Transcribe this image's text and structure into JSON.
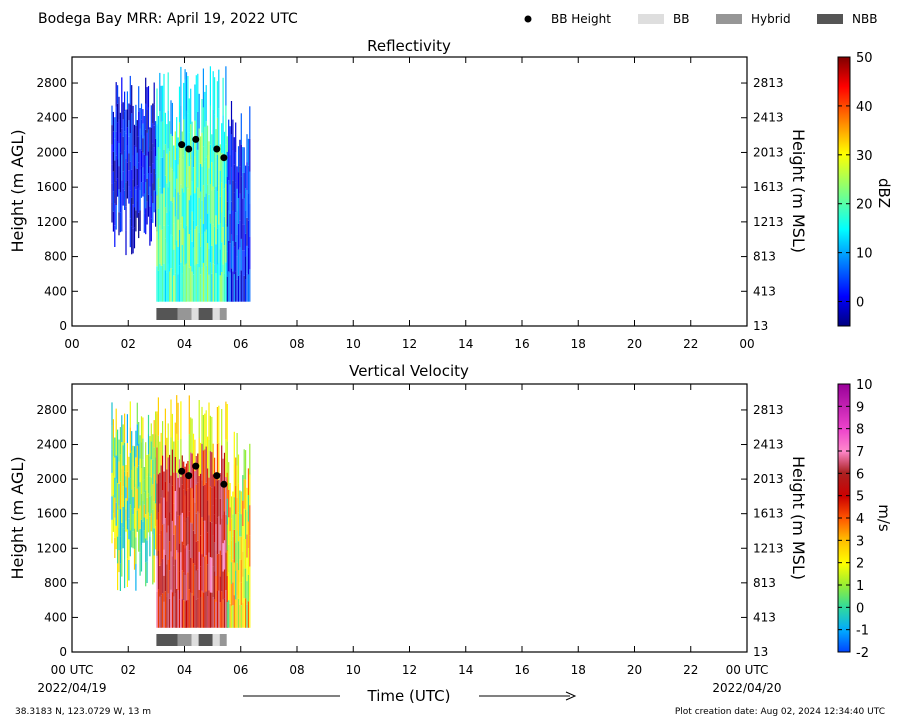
{
  "header": {
    "title": "Bodega Bay MRR:  April 19, 2022 UTC",
    "legend": [
      {
        "label": "BB Height",
        "swatch": "dot",
        "color": "#000000"
      },
      {
        "label": "BB",
        "swatch": "bar",
        "color": "#dedede"
      },
      {
        "label": "Hybrid",
        "swatch": "bar",
        "color": "#969696"
      },
      {
        "label": "NBB",
        "swatch": "bar",
        "color": "#555555"
      }
    ]
  },
  "footer": {
    "location": "38.3183 N, 123.0729 W, 13 m",
    "creation_date": "Plot creation date: Aug 02, 2024 12:34:40 UTC",
    "date_start": "2022/04/19",
    "date_end": "2022/04/20",
    "xlabel": "Time (UTC)"
  },
  "chart_data": [
    {
      "type": "heatmap",
      "title": "Reflectivity",
      "ylabel": "Height (m AGL)",
      "ylabel_right": "Height (m MSL)",
      "xlim": [
        0,
        24
      ],
      "ylim": [
        0,
        3100
      ],
      "xticks": [
        "00",
        "02",
        "04",
        "06",
        "08",
        "10",
        "12",
        "14",
        "16",
        "18",
        "20",
        "22",
        "00"
      ],
      "yticks": [
        0,
        400,
        800,
        1200,
        1600,
        2000,
        2400,
        2800
      ],
      "yticks_right": [
        "13",
        "413",
        "813",
        "1213",
        "1613",
        "2013",
        "2413",
        "2813"
      ],
      "colorbar": {
        "label": "dBZ",
        "min": -5,
        "max": 50,
        "ticks": [
          "0",
          "10",
          "20",
          "30",
          "40",
          "50"
        ],
        "tick_values": [
          0,
          10,
          20,
          30,
          40,
          50
        ],
        "colormap": "jet"
      },
      "bb_height_points": [
        {
          "t": 3.9,
          "h": 2090
        },
        {
          "t": 4.15,
          "h": 2040
        },
        {
          "t": 4.4,
          "h": 2150
        },
        {
          "t": 5.15,
          "h": 2040
        },
        {
          "t": 5.4,
          "h": 1940
        }
      ],
      "rain_type_bar": [
        {
          "start": 3.0,
          "end": 3.75,
          "type": "NBB"
        },
        {
          "start": 3.75,
          "end": 4.25,
          "type": "Hybrid"
        },
        {
          "start": 4.25,
          "end": 4.5,
          "type": "BB"
        },
        {
          "start": 4.5,
          "end": 5.0,
          "type": "NBB"
        },
        {
          "start": 5.0,
          "end": 5.25,
          "type": "BB"
        },
        {
          "start": 5.25,
          "end": 5.5,
          "type": "Hybrid"
        }
      ],
      "profiles": [
        {
          "start": 1.4,
          "end": 3.0,
          "bottom": 800,
          "top": 2900,
          "value": 1
        },
        {
          "start": 3.0,
          "end": 4.0,
          "bottom": 280,
          "top": 3000,
          "value": 20
        },
        {
          "start": 4.0,
          "end": 5.5,
          "bottom": 280,
          "top": 3000,
          "value": 25
        },
        {
          "start": 5.5,
          "end": 6.3,
          "bottom": 280,
          "top": 2600,
          "value": 3
        }
      ]
    },
    {
      "type": "heatmap",
      "title": "Vertical Velocity",
      "ylabel": "Height (m AGL)",
      "ylabel_right": "Height (m MSL)",
      "xlim": [
        0,
        24
      ],
      "ylim": [
        0,
        3100
      ],
      "xticks": [
        "00 UTC",
        "02",
        "04",
        "06",
        "08",
        "10",
        "12",
        "14",
        "16",
        "18",
        "20",
        "22",
        "00 UTC"
      ],
      "yticks": [
        0,
        400,
        800,
        1200,
        1600,
        2000,
        2400,
        2800
      ],
      "yticks_right": [
        "13",
        "413",
        "813",
        "1213",
        "1613",
        "2013",
        "2413",
        "2813"
      ],
      "colorbar": {
        "label": "m/s",
        "min": -2,
        "max": 10,
        "ticks": [
          "-2",
          "-1",
          "0",
          "1",
          "2",
          "3",
          "4",
          "5",
          "6",
          "7",
          "8",
          "9",
          "10"
        ],
        "tick_values": [
          -2,
          -1,
          0,
          1,
          2,
          3,
          4,
          5,
          6,
          7,
          8,
          9,
          10
        ],
        "colormap": "velocity"
      },
      "bb_height_points": [
        {
          "t": 3.9,
          "h": 2090
        },
        {
          "t": 4.15,
          "h": 2040
        },
        {
          "t": 4.4,
          "h": 2150
        },
        {
          "t": 5.15,
          "h": 2040
        },
        {
          "t": 5.4,
          "h": 1940
        }
      ],
      "rain_type_bar": [
        {
          "start": 3.0,
          "end": 3.75,
          "type": "NBB"
        },
        {
          "start": 3.75,
          "end": 4.25,
          "type": "Hybrid"
        },
        {
          "start": 4.25,
          "end": 4.5,
          "type": "BB"
        },
        {
          "start": 4.5,
          "end": 5.0,
          "type": "NBB"
        },
        {
          "start": 5.0,
          "end": 5.25,
          "type": "BB"
        },
        {
          "start": 5.25,
          "end": 5.5,
          "type": "Hybrid"
        }
      ],
      "profiles": [
        {
          "start": 1.4,
          "end": 3.0,
          "bottom": 700,
          "top": 2900,
          "value": 1
        },
        {
          "start": 3.0,
          "end": 4.0,
          "bottom": 280,
          "top": 3000,
          "value": 6
        },
        {
          "start": 4.0,
          "end": 5.5,
          "bottom": 280,
          "top": 3000,
          "value": 6
        },
        {
          "start": 5.5,
          "end": 6.3,
          "bottom": 280,
          "top": 2600,
          "value": 2
        }
      ]
    }
  ]
}
